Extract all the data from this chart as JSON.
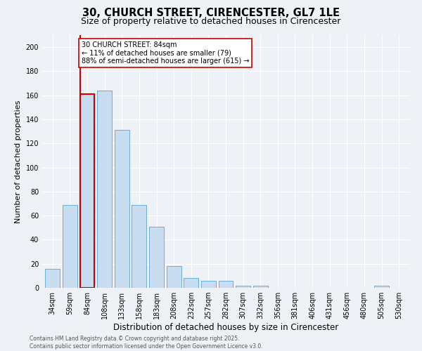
{
  "title": "30, CHURCH STREET, CIRENCESTER, GL7 1LE",
  "subtitle": "Size of property relative to detached houses in Cirencester",
  "xlabel": "Distribution of detached houses by size in Cirencester",
  "ylabel": "Number of detached properties",
  "categories": [
    "34sqm",
    "59sqm",
    "84sqm",
    "108sqm",
    "133sqm",
    "158sqm",
    "183sqm",
    "208sqm",
    "232sqm",
    "257sqm",
    "282sqm",
    "307sqm",
    "332sqm",
    "356sqm",
    "381sqm",
    "406sqm",
    "431sqm",
    "456sqm",
    "480sqm",
    "505sqm",
    "530sqm"
  ],
  "values": [
    16,
    69,
    161,
    164,
    131,
    69,
    51,
    18,
    8,
    6,
    6,
    2,
    2,
    0,
    0,
    0,
    0,
    0,
    0,
    2,
    0
  ],
  "bar_color": "#c8ddef",
  "bar_edge_color": "#6aaed6",
  "highlight_index": 2,
  "highlight_line_color": "#cc0000",
  "annotation_text": "30 CHURCH STREET: 84sqm\n← 11% of detached houses are smaller (79)\n88% of semi-detached houses are larger (615) →",
  "annotation_box_color": "#ffffff",
  "annotation_box_edge_color": "#cc0000",
  "ylim": [
    0,
    210
  ],
  "yticks": [
    0,
    20,
    40,
    60,
    80,
    100,
    120,
    140,
    160,
    180,
    200
  ],
  "background_color": "#eef2f7",
  "footer_text": "Contains HM Land Registry data © Crown copyright and database right 2025.\nContains public sector information licensed under the Open Government Licence v3.0.",
  "title_fontsize": 10.5,
  "subtitle_fontsize": 9,
  "xlabel_fontsize": 8.5,
  "ylabel_fontsize": 8,
  "tick_fontsize": 7,
  "annotation_fontsize": 7,
  "footer_fontsize": 5.5
}
